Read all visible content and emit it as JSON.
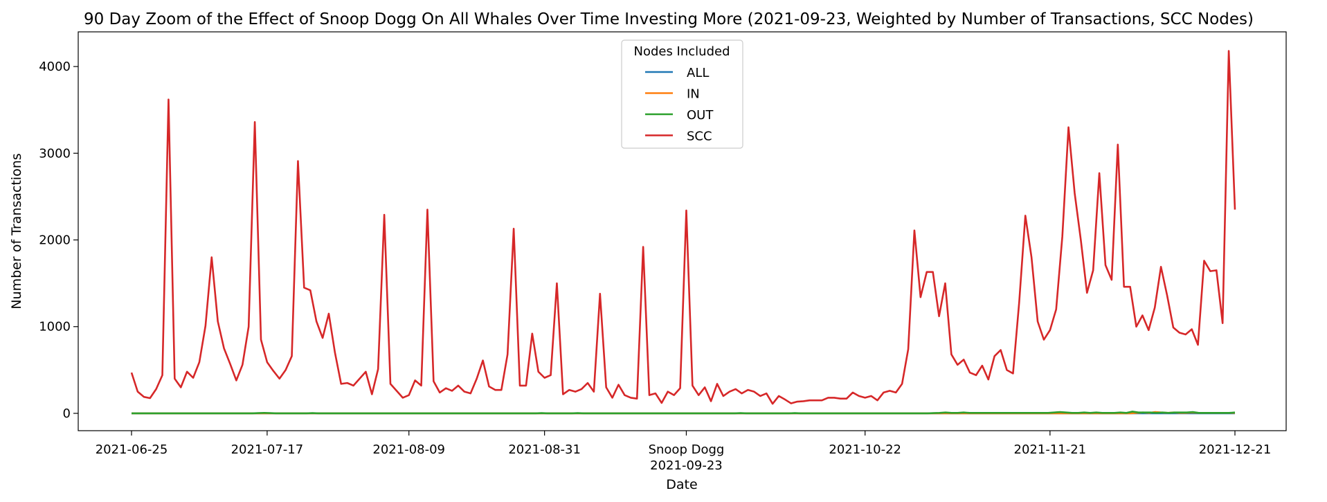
{
  "chart_data": {
    "type": "line",
    "title": "90 Day Zoom of the Effect of Snoop Dogg On All Whales Over Time Investing More (2021-09-23, Weighted by Number of Transactions, SCC Nodes)",
    "xlabel": "Date",
    "ylabel": "Number of Transactions",
    "x_start": "2021-06-25",
    "x_end": "2021-12-21",
    "x_tick_labels": [
      "2021-06-25",
      "2021-07-17",
      "2021-08-09",
      "2021-08-31",
      "2021-09-23",
      "2021-10-22",
      "2021-11-21",
      "2021-12-21"
    ],
    "event_label": "Snoop Dogg",
    "event_date": "2021-09-23",
    "y_ticks": [
      0,
      1000,
      2000,
      3000,
      4000
    ],
    "ylim": [
      -200,
      4400
    ],
    "grid": false,
    "legend": {
      "title": "Nodes Included",
      "placement": "upper center"
    },
    "series": [
      {
        "name": "ALL",
        "color": "#1f77b4",
        "values": [
          0,
          0,
          0,
          0,
          0,
          0,
          0,
          0,
          0,
          0,
          0,
          0,
          0,
          0,
          0,
          0,
          0,
          0,
          0,
          0,
          0,
          0,
          0,
          0,
          0,
          0,
          0,
          0,
          0,
          0,
          0,
          0,
          0,
          0,
          0,
          0,
          0,
          0,
          0,
          0,
          0,
          0,
          0,
          0,
          0,
          0,
          0,
          0,
          0,
          0,
          0,
          0,
          0,
          0,
          0,
          0,
          0,
          0,
          0,
          0,
          0,
          0,
          0,
          0,
          0,
          0,
          0,
          0,
          0,
          0,
          0,
          0,
          0,
          0,
          0,
          0,
          0,
          0,
          0,
          0,
          0,
          0,
          0,
          0,
          0,
          0,
          0,
          0,
          0,
          0,
          0,
          0,
          0,
          0,
          0,
          0,
          0,
          0,
          0,
          0,
          0,
          0,
          0,
          0,
          0,
          0,
          0,
          0,
          0,
          0,
          0,
          0,
          0,
          0,
          0,
          0,
          0,
          0,
          0,
          0,
          0,
          0,
          0,
          0,
          0,
          0,
          0,
          0,
          0,
          0,
          0,
          0,
          0,
          0,
          0,
          0,
          0,
          0,
          0,
          0,
          0,
          0,
          0,
          0,
          0,
          0,
          0,
          0,
          0,
          0,
          0,
          0,
          0,
          0,
          0,
          0,
          0,
          0,
          0,
          0,
          0,
          0,
          0,
          0,
          0,
          0,
          0,
          0,
          0,
          0,
          0,
          0,
          0,
          0,
          0,
          0,
          0,
          0,
          0,
          0
        ]
      },
      {
        "name": "IN",
        "color": "#ff7f0e",
        "values": [
          0,
          0,
          0,
          0,
          0,
          0,
          0,
          0,
          0,
          0,
          0,
          0,
          0,
          0,
          0,
          0,
          0,
          0,
          0,
          0,
          0,
          0,
          0,
          0,
          0,
          0,
          0,
          0,
          0,
          0,
          0,
          0,
          0,
          0,
          0,
          0,
          0,
          0,
          0,
          0,
          0,
          0,
          0,
          0,
          0,
          0,
          0,
          0,
          0,
          0,
          0,
          0,
          0,
          0,
          0,
          0,
          0,
          0,
          0,
          0,
          0,
          0,
          0,
          0,
          0,
          0,
          0,
          0,
          0,
          0,
          0,
          0,
          0,
          0,
          0,
          0,
          0,
          0,
          0,
          0,
          0,
          0,
          0,
          0,
          0,
          0,
          0,
          0,
          0,
          0,
          0,
          0,
          0,
          0,
          0,
          0,
          0,
          0,
          0,
          0,
          0,
          0,
          0,
          0,
          0,
          0,
          0,
          0,
          0,
          0,
          0,
          0,
          0,
          0,
          0,
          0,
          0,
          0,
          0,
          0,
          0,
          0,
          0,
          0,
          0,
          0,
          0,
          0,
          0,
          0,
          0,
          0,
          0,
          0,
          0,
          0,
          0,
          0,
          0,
          0,
          0,
          0,
          0,
          0,
          0,
          0,
          0,
          0,
          0,
          0,
          0,
          0,
          0,
          0,
          0,
          0,
          0,
          0,
          0,
          0,
          0,
          0,
          0,
          0,
          5,
          10,
          5,
          15,
          10,
          5,
          10,
          5,
          5,
          10,
          5,
          5,
          5,
          5,
          5,
          5,
          5
        ]
      },
      {
        "name": "OUT",
        "color": "#2ca02c",
        "values": [
          0,
          0,
          0,
          0,
          0,
          0,
          0,
          0,
          0,
          0,
          0,
          0,
          0,
          0,
          0,
          0,
          0,
          0,
          0,
          0,
          0,
          3,
          5,
          3,
          0,
          0,
          0,
          0,
          0,
          0,
          3,
          0,
          0,
          0,
          0,
          0,
          0,
          0,
          0,
          0,
          0,
          0,
          0,
          0,
          0,
          0,
          0,
          0,
          0,
          0,
          0,
          0,
          0,
          0,
          0,
          0,
          0,
          0,
          0,
          0,
          0,
          0,
          0,
          0,
          0,
          0,
          0,
          0,
          3,
          0,
          0,
          0,
          0,
          0,
          3,
          0,
          0,
          0,
          0,
          0,
          0,
          0,
          0,
          0,
          0,
          0,
          0,
          0,
          0,
          0,
          0,
          0,
          0,
          0,
          0,
          0,
          0,
          0,
          0,
          0,
          0,
          3,
          0,
          0,
          0,
          0,
          0,
          0,
          0,
          0,
          3,
          0,
          0,
          0,
          0,
          0,
          0,
          0,
          0,
          0,
          0,
          0,
          0,
          0,
          0,
          0,
          0,
          0,
          0,
          0,
          0,
          0,
          0,
          3,
          5,
          10,
          5,
          5,
          10,
          5,
          5,
          5,
          5,
          5,
          5,
          5,
          5,
          5,
          5,
          5,
          5,
          5,
          5,
          10,
          15,
          10,
          5,
          5,
          10,
          5,
          10,
          5,
          5,
          5,
          10,
          5,
          20,
          10,
          10,
          10,
          5,
          10,
          5,
          10,
          10,
          10,
          15,
          5,
          5,
          5,
          5,
          5,
          5,
          10
        ]
      },
      {
        "name": "SCC",
        "color": "#d62728",
        "values": [
          470,
          250,
          190,
          175,
          280,
          440,
          3620,
          400,
          300,
          480,
          410,
          590,
          1010,
          1800,
          1060,
          750,
          570,
          380,
          560,
          1000,
          3360,
          850,
          590,
          490,
          400,
          500,
          660,
          2910,
          1450,
          1420,
          1060,
          870,
          1150,
          700,
          340,
          350,
          320,
          400,
          480,
          220,
          510,
          2290,
          340,
          260,
          180,
          210,
          380,
          320,
          2350,
          370,
          240,
          290,
          260,
          320,
          250,
          230,
          400,
          610,
          310,
          270,
          270,
          680,
          2130,
          320,
          320,
          920,
          480,
          410,
          440,
          1500,
          220,
          270,
          250,
          280,
          350,
          250,
          1380,
          300,
          180,
          330,
          210,
          180,
          170,
          1920,
          210,
          230,
          120,
          250,
          210,
          290,
          2340,
          320,
          210,
          300,
          140,
          340,
          200,
          250,
          280,
          230,
          270,
          250,
          200,
          230,
          110,
          200,
          160,
          115,
          135,
          140,
          150,
          150,
          150,
          180,
          180,
          170,
          170,
          240,
          200,
          180,
          200,
          150,
          240,
          260,
          240,
          340,
          740,
          2110,
          1340,
          1630,
          1630,
          1120,
          1500,
          680,
          560,
          620,
          470,
          440,
          550,
          390,
          660,
          730,
          500,
          460,
          1280,
          2280,
          1800,
          1060,
          850,
          960,
          1200,
          2040,
          3300,
          2540,
          2000,
          1390,
          1650,
          2770,
          1710,
          1540,
          3100,
          1460,
          1460,
          1000,
          1130,
          960,
          1220,
          1690,
          1360,
          990,
          930,
          910,
          970,
          790,
          1760,
          1640,
          1650,
          1040,
          4180,
          2350
        ]
      }
    ]
  }
}
